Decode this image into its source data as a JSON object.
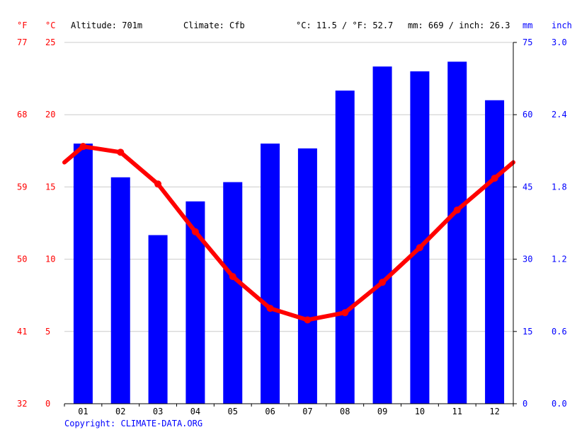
{
  "header": {
    "altitude": "Altitude: 701m",
    "climate": "Climate: Cfb",
    "temp_avg": "°C: 11.5 / °F: 52.7",
    "precip_total": "mm: 669 / inch: 26.3"
  },
  "footer": {
    "copyright": "Copyright: CLIMATE-DATA.ORG"
  },
  "colors": {
    "temperature": "#ff0000",
    "precipitation": "#0000ff",
    "grid": "#cccccc"
  },
  "chart_data": {
    "type": "bar",
    "categories": [
      "01",
      "02",
      "03",
      "04",
      "05",
      "06",
      "07",
      "08",
      "09",
      "10",
      "11",
      "12"
    ],
    "series": [
      {
        "type": "bar",
        "axis": "right",
        "unit": "mm",
        "values": [
          54,
          47,
          35,
          42,
          46,
          54,
          53,
          65,
          70,
          69,
          71,
          63
        ]
      },
      {
        "type": "line",
        "axis": "left",
        "unit": "°C",
        "values": [
          17.8,
          17.4,
          15.2,
          11.9,
          8.8,
          6.6,
          5.8,
          6.3,
          8.4,
          10.8,
          13.4,
          15.6
        ]
      }
    ],
    "left_axis_f": {
      "label": "°F",
      "ticks": [
        "32",
        "41",
        "50",
        "59",
        "68",
        "77"
      ]
    },
    "left_axis_c": {
      "label": "°C",
      "ticks": [
        "0",
        "5",
        "10",
        "15",
        "20",
        "25"
      ],
      "ylim": [
        0,
        25
      ]
    },
    "right_axis_mm": {
      "label": "mm",
      "ticks": [
        "0",
        "15",
        "30",
        "45",
        "60",
        "75"
      ],
      "ylim": [
        0,
        75
      ]
    },
    "right_axis_inch": {
      "label": "inch",
      "ticks": [
        "0.0",
        "0.6",
        "1.2",
        "1.8",
        "2.4",
        "3.0"
      ]
    },
    "grid": true
  }
}
